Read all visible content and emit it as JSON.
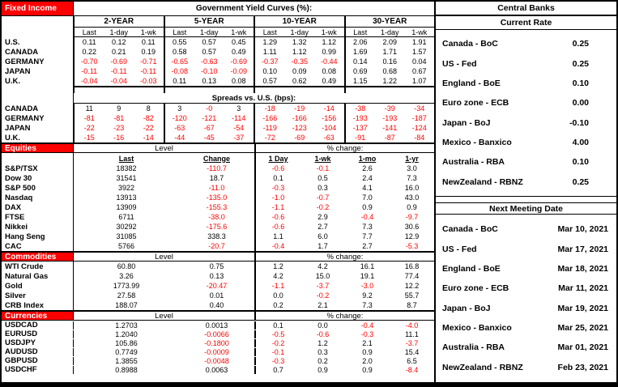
{
  "colors": {
    "accent_red": "#FF0000",
    "negative_text": "#FF0000",
    "border": "#000000",
    "background": "#FFFFFF"
  },
  "fixed_income": {
    "section_label": "Fixed Income",
    "title": "Government Yield Curves (%):",
    "maturity_groups": [
      "2-YEAR",
      "5-YEAR",
      "10-YEAR",
      "30-YEAR"
    ],
    "col_headers": [
      "Last",
      "1-day",
      "1-wk"
    ],
    "yields": [
      {
        "name": "U.S.",
        "values": [
          "0.11",
          "0.12",
          "0.11",
          "0.55",
          "0.57",
          "0.45",
          "1.29",
          "1.32",
          "1.12",
          "2.06",
          "2.09",
          "1.91"
        ]
      },
      {
        "name": "CANADA",
        "values": [
          "0.22",
          "0.21",
          "0.19",
          "0.58",
          "0.57",
          "0.49",
          "1.11",
          "1.12",
          "0.99",
          "1.69",
          "1.71",
          "1.57"
        ]
      },
      {
        "name": "GERMANY",
        "values": [
          "-0.70",
          "-0.69",
          "-0.71",
          "-0.65",
          "-0.63",
          "-0.69",
          "-0.37",
          "-0.35",
          "-0.44",
          "0.14",
          "0.16",
          "0.04"
        ]
      },
      {
        "name": "JAPAN",
        "values": [
          "-0.11",
          "-0.11",
          "-0.11",
          "-0.08",
          "-0.10",
          "-0.09",
          "0.10",
          "0.09",
          "0.08",
          "0.69",
          "0.68",
          "0.67"
        ]
      },
      {
        "name": "U.K.",
        "values": [
          "-0.04",
          "-0.04",
          "-0.03",
          "0.11",
          "0.13",
          "0.08",
          "0.57",
          "0.62",
          "0.49",
          "1.15",
          "1.22",
          "1.07"
        ]
      }
    ],
    "spreads_title": "Spreads vs. U.S. (bps):",
    "spreads": [
      {
        "name": "CANADA",
        "values": [
          "11",
          "9",
          "8",
          "3",
          "-0",
          "3",
          "-18",
          "-19",
          "-14",
          "-38",
          "-39",
          "-34"
        ]
      },
      {
        "name": "GERMANY",
        "values": [
          "-81",
          "-81",
          "-82",
          "-120",
          "-121",
          "-114",
          "-166",
          "-166",
          "-156",
          "-193",
          "-193",
          "-187"
        ]
      },
      {
        "name": "JAPAN",
        "values": [
          "-22",
          "-23",
          "-22",
          "-63",
          "-67",
          "-54",
          "-119",
          "-123",
          "-104",
          "-137",
          "-141",
          "-124"
        ]
      },
      {
        "name": "U.K.",
        "values": [
          "-15",
          "-16",
          "-14",
          "-44",
          "-45",
          "-37",
          "-72",
          "-69",
          "-63",
          "-91",
          "-87",
          "-84"
        ]
      }
    ]
  },
  "market_sections": [
    {
      "label": "Equities",
      "level_label": "Level",
      "pct_label": "% change:",
      "col_headers": [
        "Last",
        "Change",
        "1 Day",
        "1-wk",
        "1-mo",
        "1-yr"
      ],
      "rows": [
        {
          "name": "S&P/TSX",
          "last": "18382",
          "change": "-110.7",
          "pct": [
            "-0.6",
            "-0.1",
            "2.6",
            "3.0"
          ]
        },
        {
          "name": "Dow 30",
          "last": "31541",
          "change": "18.7",
          "pct": [
            "0.1",
            "0.5",
            "2.4",
            "7.3"
          ]
        },
        {
          "name": "S&P 500",
          "last": "3922",
          "change": "-11.0",
          "pct": [
            "-0.3",
            "0.3",
            "4.1",
            "16.0"
          ]
        },
        {
          "name": "Nasdaq",
          "last": "13913",
          "change": "-135.0",
          "pct": [
            "-1.0",
            "-0.7",
            "7.0",
            "43.0"
          ]
        },
        {
          "name": "DAX",
          "last": "13909",
          "change": "-155.3",
          "pct": [
            "-1.1",
            "-0.2",
            "0.9",
            "0.9"
          ]
        },
        {
          "name": "FTSE",
          "last": "6711",
          "change": "-38.0",
          "pct": [
            "-0.6",
            "2.9",
            "-0.4",
            "-9.7"
          ]
        },
        {
          "name": "Nikkei",
          "last": "30292",
          "change": "-175.6",
          "pct": [
            "-0.6",
            "2.7",
            "7.3",
            "30.6"
          ]
        },
        {
          "name": "Hang Seng",
          "last": "31085",
          "change": "338.3",
          "pct": [
            "1.1",
            "6.0",
            "7.7",
            "12.9"
          ]
        },
        {
          "name": "CAC",
          "last": "5766",
          "change": "-20.7",
          "pct": [
            "-0.4",
            "1.7",
            "2.7",
            "-5.3"
          ]
        }
      ]
    },
    {
      "label": "Commodities",
      "level_label": "Level",
      "pct_label": "% change:",
      "rows": [
        {
          "name": "WTI Crude",
          "last": "60.80",
          "change": "0.75",
          "pct": [
            "1.2",
            "4.2",
            "16.1",
            "16.8"
          ]
        },
        {
          "name": "Natural Gas",
          "last": "3.26",
          "change": "0.13",
          "pct": [
            "4.2",
            "15.0",
            "19.1",
            "77.4"
          ]
        },
        {
          "name": "Gold",
          "last": "1773.99",
          "change": "-20.47",
          "pct": [
            "-1.1",
            "-3.7",
            "-3.0",
            "12.2"
          ]
        },
        {
          "name": "Silver",
          "last": "27.58",
          "change": "0.01",
          "pct": [
            "0.0",
            "-0.2",
            "9.2",
            "55.7"
          ]
        },
        {
          "name": "CRB Index",
          "last": "188.07",
          "change": "0.40",
          "pct": [
            "0.2",
            "2.1",
            "7.3",
            "8.7"
          ]
        }
      ]
    },
    {
      "label": "Currencies",
      "level_label": "Level",
      "pct_label": "% change:",
      "rows": [
        {
          "name": "USDCAD",
          "last": "1.2703",
          "change": "0.0013",
          "pct": [
            "0.1",
            "0.0",
            "-0.4",
            "-4.0"
          ]
        },
        {
          "name": "EURUSD",
          "last": "1.2040",
          "change": "-0.0066",
          "pct": [
            "-0.5",
            "-0.6",
            "-0.3",
            "11.1"
          ]
        },
        {
          "name": "USDJPY",
          "last": "105.86",
          "change": "-0.1800",
          "pct": [
            "-0.2",
            "1.2",
            "2.1",
            "-3.7"
          ]
        },
        {
          "name": "AUDUSD",
          "last": "0.7749",
          "change": "-0.0009",
          "pct": [
            "-0.1",
            "0.3",
            "0.9",
            "15.4"
          ]
        },
        {
          "name": "GBPUSD",
          "last": "1.3855",
          "change": "-0.0048",
          "pct": [
            "-0.3",
            "0.2",
            "2.0",
            "6.5"
          ]
        },
        {
          "name": "USDCHF",
          "last": "0.8988",
          "change": "0.0063",
          "pct": [
            "0.7",
            "0.9",
            "0.9",
            "-8.4"
          ]
        }
      ]
    }
  ],
  "central_banks": {
    "title": "Central Banks",
    "current_rate_label": "Current Rate",
    "rates": [
      {
        "name": "Canada - BoC",
        "rate": "0.25"
      },
      {
        "name": "US - Fed",
        "rate": "0.25"
      },
      {
        "name": "England - BoE",
        "rate": "0.10"
      },
      {
        "name": "Euro zone - ECB",
        "rate": "0.00"
      },
      {
        "name": "Japan - BoJ",
        "rate": "-0.10"
      },
      {
        "name": "Mexico - Banxico",
        "rate": "4.00"
      },
      {
        "name": "Australia - RBA",
        "rate": "0.10"
      },
      {
        "name": "NewZealand - RBNZ",
        "rate": "0.25"
      }
    ],
    "next_meeting_label": "Next Meeting Date",
    "meetings": [
      {
        "name": "Canada - BoC",
        "date": "Mar 10, 2021"
      },
      {
        "name": "US - Fed",
        "date": "Mar 17, 2021"
      },
      {
        "name": "England - BoE",
        "date": "Mar 18, 2021"
      },
      {
        "name": "Euro zone - ECB",
        "date": "Mar 11, 2021"
      },
      {
        "name": "Japan - BoJ",
        "date": "Mar 19, 2021"
      },
      {
        "name": "Mexico - Banxico",
        "date": "Mar 25, 2021"
      },
      {
        "name": "Australia - RBA",
        "date": "Mar 01, 2021"
      },
      {
        "name": "NewZealand - RBNZ",
        "date": "Feb 23, 2021"
      }
    ]
  }
}
